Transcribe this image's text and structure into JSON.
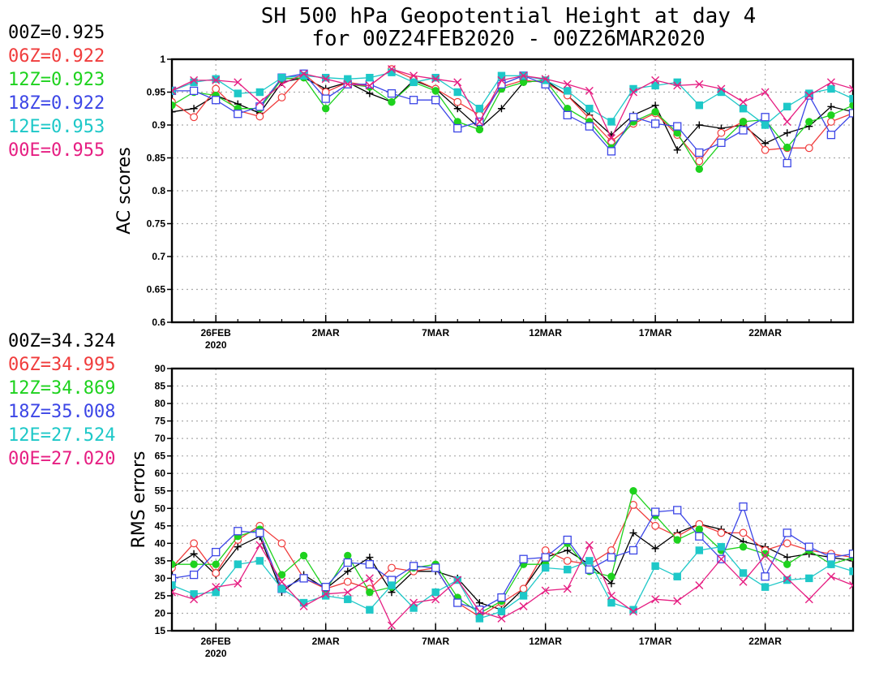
{
  "title_line1": "SH 500 hPa Geopotential Height at day 4",
  "title_line2": "for 00Z24FEB2020 - 00Z26MAR2020",
  "series_styles": [
    {
      "name": "00Z",
      "color": "#000000",
      "marker": "plus"
    },
    {
      "name": "06Z",
      "color": "#f03c3c",
      "marker": "open-circle"
    },
    {
      "name": "12Z",
      "color": "#1ed21e",
      "marker": "filled-circle"
    },
    {
      "name": "18Z",
      "color": "#3c46e6",
      "marker": "open-square"
    },
    {
      "name": "12E",
      "color": "#1ec8c8",
      "marker": "filled-square"
    },
    {
      "name": "00E",
      "color": "#e61e82",
      "marker": "cross"
    }
  ],
  "chart_data": [
    {
      "type": "line",
      "ylabel": "AC scores",
      "ylim": [
        0.6,
        1.0
      ],
      "yticks": [
        0.6,
        0.65,
        0.7,
        0.75,
        0.8,
        0.85,
        0.9,
        0.95,
        1
      ],
      "ytick_labels": [
        "0.6",
        "0.65",
        "0.7",
        "0.75",
        "0.8",
        "0.85",
        "0.9",
        "0.95",
        "1"
      ],
      "xlim": [
        0,
        31
      ],
      "xticks": [
        2,
        7,
        12,
        17,
        22,
        27
      ],
      "xtick_labels": [
        "26FEB",
        "2MAR",
        "7MAR",
        "12MAR",
        "17MAR",
        "22MAR"
      ],
      "xtick_year_label": "2020",
      "grid": true,
      "scores": [
        "00Z=0.925",
        "06Z=0.922",
        "12Z=0.923",
        "18Z=0.922",
        "12E=0.953",
        "00E=0.955"
      ],
      "x": [
        0,
        1,
        2,
        3,
        4,
        5,
        6,
        7,
        8,
        9,
        10,
        11,
        12,
        13,
        14,
        15,
        16,
        17,
        18,
        19,
        20,
        21,
        22,
        23,
        24,
        25,
        26,
        27,
        28,
        29,
        30,
        31
      ],
      "series": [
        {
          "name": "00Z",
          "values": [
            0.92,
            0.925,
            0.945,
            0.932,
            0.918,
            0.965,
            0.972,
            0.955,
            0.965,
            0.948,
            0.935,
            0.968,
            0.955,
            0.925,
            0.895,
            0.925,
            0.965,
            0.968,
            0.945,
            0.915,
            0.885,
            0.915,
            0.93,
            0.862,
            0.9,
            0.895,
            0.9,
            0.872,
            0.888,
            0.898,
            0.928,
            0.92
          ]
        },
        {
          "name": "06Z",
          "values": [
            0.935,
            0.912,
            0.955,
            0.922,
            0.913,
            0.942,
            0.978,
            0.95,
            0.965,
            0.96,
            0.985,
            0.97,
            0.955,
            0.935,
            0.915,
            0.958,
            0.968,
            0.965,
            0.945,
            0.91,
            0.875,
            0.902,
            0.918,
            0.885,
            0.845,
            0.888,
            0.905,
            0.862,
            0.865,
            0.865,
            0.905,
            0.918
          ]
        },
        {
          "name": "12Z",
          "values": [
            0.93,
            0.95,
            0.945,
            0.925,
            0.925,
            0.97,
            0.972,
            0.925,
            0.962,
            0.958,
            0.935,
            0.965,
            0.952,
            0.905,
            0.893,
            0.955,
            0.965,
            0.968,
            0.925,
            0.905,
            0.865,
            0.905,
            0.92,
            0.888,
            0.833,
            0.873,
            0.905,
            0.908,
            0.866,
            0.905,
            0.915,
            0.93
          ]
        },
        {
          "name": "18Z",
          "values": [
            0.952,
            0.952,
            0.938,
            0.917,
            0.928,
            0.972,
            0.978,
            0.94,
            0.962,
            0.962,
            0.948,
            0.938,
            0.938,
            0.895,
            0.905,
            0.962,
            0.975,
            0.962,
            0.915,
            0.898,
            0.86,
            0.912,
            0.902,
            0.898,
            0.858,
            0.873,
            0.892,
            0.912,
            0.842,
            0.945,
            0.885,
            0.918
          ]
        },
        {
          "name": "12E",
          "values": [
            0.952,
            0.965,
            0.97,
            0.948,
            0.95,
            0.972,
            0.975,
            0.972,
            0.97,
            0.972,
            0.98,
            0.965,
            0.972,
            0.95,
            0.925,
            0.975,
            0.975,
            0.968,
            0.952,
            0.925,
            0.905,
            0.955,
            0.96,
            0.965,
            0.93,
            0.95,
            0.925,
            0.9,
            0.928,
            0.948,
            0.955,
            0.94
          ]
        },
        {
          "name": "00E",
          "values": [
            0.952,
            0.968,
            0.968,
            0.965,
            0.935,
            0.962,
            0.978,
            0.97,
            0.962,
            0.96,
            0.985,
            0.975,
            0.97,
            0.965,
            0.905,
            0.968,
            0.975,
            0.97,
            0.962,
            0.952,
            0.88,
            0.95,
            0.968,
            0.96,
            0.962,
            0.955,
            0.935,
            0.95,
            0.905,
            0.945,
            0.965,
            0.955
          ]
        }
      ]
    },
    {
      "type": "line",
      "ylabel": "RMS errors",
      "ylim": [
        15,
        90
      ],
      "yticks": [
        15,
        20,
        25,
        30,
        35,
        40,
        45,
        50,
        55,
        60,
        65,
        70,
        75,
        80,
        85,
        90
      ],
      "ytick_labels": [
        "15",
        "20",
        "25",
        "30",
        "35",
        "40",
        "45",
        "50",
        "55",
        "60",
        "65",
        "70",
        "75",
        "80",
        "85",
        "90"
      ],
      "xlim": [
        0,
        31
      ],
      "xticks": [
        2,
        7,
        12,
        17,
        22,
        27
      ],
      "xtick_labels": [
        "26FEB",
        "2MAR",
        "7MAR",
        "12MAR",
        "17MAR",
        "22MAR"
      ],
      "xtick_year_label": "2020",
      "grid": true,
      "scores": [
        "00Z=34.324",
        "06Z=34.995",
        "12Z=34.869",
        "18Z=35.008",
        "12E=27.524",
        "00E=27.020"
      ],
      "x": [
        0,
        1,
        2,
        3,
        4,
        5,
        6,
        7,
        8,
        9,
        10,
        11,
        12,
        13,
        14,
        15,
        16,
        17,
        18,
        19,
        20,
        21,
        22,
        23,
        24,
        25,
        26,
        27,
        28,
        29,
        30,
        31
      ],
      "series": [
        {
          "name": "00Z",
          "values": [
            33,
            37,
            31,
            39,
            42,
            26,
            31,
            27,
            32,
            36,
            26,
            32,
            32,
            30,
            23,
            21,
            27,
            36,
            38,
            34,
            28.5,
            43,
            38.5,
            43,
            45.5,
            44,
            40.5,
            39,
            36,
            37,
            36,
            35
          ]
        },
        {
          "name": "06Z",
          "values": [
            33,
            40,
            31.5,
            41,
            45,
            40,
            30,
            27,
            29,
            27,
            33,
            32,
            33,
            23,
            19,
            23,
            27,
            38,
            35,
            34,
            38,
            51,
            45,
            42,
            45.5,
            43,
            43,
            38,
            40,
            38,
            37,
            36
          ]
        },
        {
          "name": "12Z",
          "values": [
            34,
            34,
            34,
            42,
            44,
            31,
            36.5,
            26.5,
            36.5,
            26,
            27.5,
            33,
            34,
            24.5,
            20,
            23.5,
            34,
            34,
            40,
            32,
            30.5,
            55,
            48,
            41,
            44,
            38,
            39,
            37,
            34,
            38,
            34,
            36
          ]
        },
        {
          "name": "18Z",
          "values": [
            30,
            31,
            37.5,
            43.5,
            43,
            27,
            30,
            27.5,
            34.5,
            34,
            29.5,
            33.5,
            33,
            23,
            21,
            24.5,
            35.5,
            36,
            41,
            32.5,
            36,
            38,
            49,
            49.5,
            42,
            35.5,
            50.5,
            30.5,
            43,
            39,
            36,
            37
          ]
        },
        {
          "name": "12E",
          "values": [
            28,
            25.5,
            26,
            34,
            35,
            27,
            23,
            25,
            24,
            21,
            28,
            21.5,
            26,
            29.5,
            18.5,
            20.5,
            25,
            33,
            32.5,
            35,
            23,
            21,
            33.5,
            30.5,
            38,
            39,
            31.5,
            27.5,
            29.5,
            30,
            34,
            32
          ]
        },
        {
          "name": "00E",
          "values": [
            26,
            24,
            27.5,
            28.5,
            39.5,
            29,
            22,
            25.5,
            26,
            30,
            16.5,
            23,
            24,
            29.5,
            20.5,
            18.5,
            22,
            26.5,
            27,
            39.5,
            25,
            20.5,
            24,
            23.5,
            28,
            35.5,
            29,
            36.5,
            30,
            24,
            30.5,
            28
          ]
        }
      ]
    }
  ]
}
